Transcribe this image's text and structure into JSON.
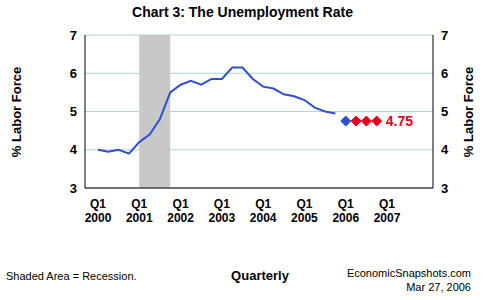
{
  "chart_data": {
    "type": "line",
    "title": "Chart 3: The Unemployment Rate",
    "x_label": "Quarterly",
    "y_label": "% Labor Force",
    "y2_label": "% Labor Force",
    "categories": [
      "Q1 2000",
      null,
      null,
      null,
      "Q1 2001",
      null,
      null,
      null,
      "Q1 2002",
      null,
      null,
      null,
      "Q1 2003",
      null,
      null,
      null,
      "Q1 2004",
      null,
      null,
      null,
      "Q1 2005",
      null,
      null,
      null,
      "Q1 2006",
      null,
      null,
      null,
      "Q1 2007",
      null,
      null,
      null
    ],
    "series": [
      {
        "color": "#2f4fd0",
        "line_style": "solid",
        "marker": "none",
        "values": [
          4.0,
          3.95,
          4.0,
          3.9,
          4.2,
          4.4,
          4.8,
          5.5,
          5.7,
          5.8,
          5.7,
          5.85,
          5.85,
          6.15,
          6.15,
          5.85,
          5.65,
          5.6,
          5.45,
          5.4,
          5.3,
          5.1,
          5.0,
          4.95,
          null,
          null,
          null,
          null,
          null,
          null,
          null,
          null
        ]
      },
      {
        "color": "#2f4fd0",
        "line_style": "none",
        "marker": "diamond",
        "values": [
          null,
          null,
          null,
          null,
          null,
          null,
          null,
          null,
          null,
          null,
          null,
          null,
          null,
          null,
          null,
          null,
          null,
          null,
          null,
          null,
          null,
          null,
          null,
          null,
          4.75,
          null,
          null,
          null,
          null,
          null,
          null,
          null
        ]
      },
      {
        "color": "#e8001c",
        "line_style": "none",
        "marker": "diamond",
        "values": [
          null,
          null,
          null,
          null,
          null,
          null,
          null,
          null,
          null,
          null,
          null,
          null,
          null,
          null,
          null,
          null,
          null,
          null,
          null,
          null,
          null,
          null,
          null,
          null,
          null,
          4.75,
          4.75,
          4.75,
          null,
          null,
          null,
          null
        ]
      }
    ],
    "shaded_range": [
      4,
      7
    ],
    "ylim": [
      3,
      7
    ],
    "yticks": [
      3,
      4,
      5,
      6,
      7
    ],
    "y2lim": [
      3,
      7
    ],
    "y2ticks": [
      3,
      4,
      5,
      6,
      7
    ],
    "grid": true,
    "annotations": [
      {
        "text": "4.75",
        "y": 4.75,
        "color": "#e8001c"
      }
    ],
    "footer": {
      "left": "Shaded Area = Recession.",
      "right": [
        "EconomicSnapshots.com",
        "Mar 27, 2006"
      ]
    }
  }
}
